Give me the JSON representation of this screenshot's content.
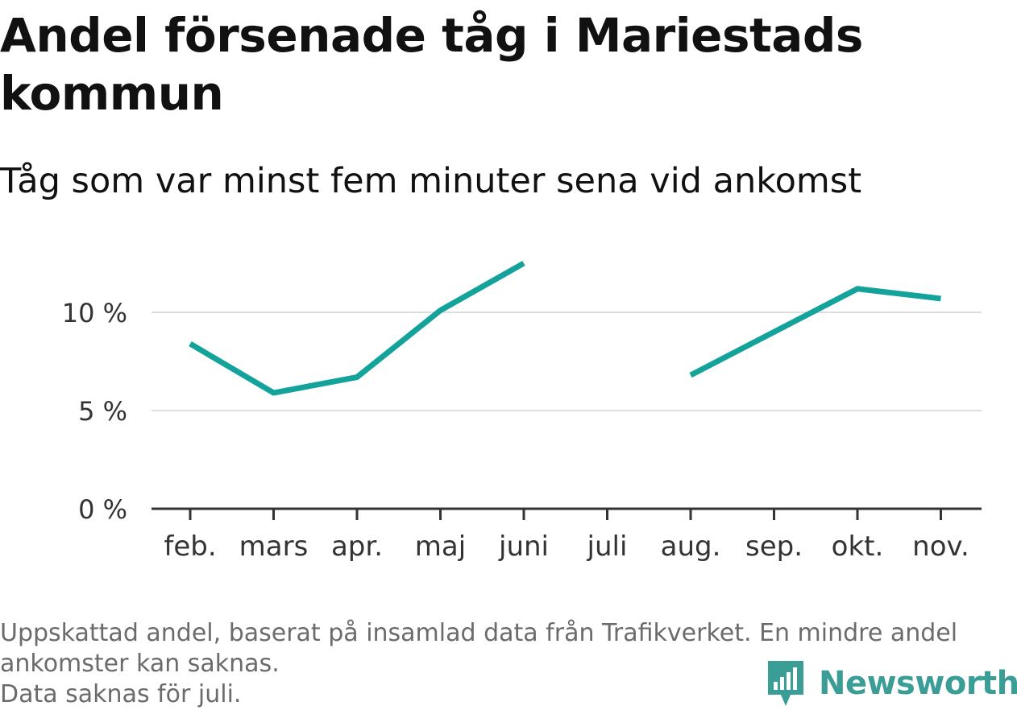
{
  "title": "Andel försenade tåg i Mariestads kommun",
  "subtitle": "Tåg som var minst fem minuter sena vid ankomst",
  "notes": [
    "Uppskattad andel, baserat på insamlad data från Trafikverket. En mindre andel",
    "ankomster kan saknas.",
    "Data saknas för juli."
  ],
  "brand": {
    "name": "Newsworthy",
    "icon": "newsworthy-logo-icon",
    "color": "#3a9d96"
  },
  "chart_data": {
    "type": "line",
    "categories": [
      "feb.",
      "mars",
      "apr.",
      "maj",
      "juni",
      "juli",
      "aug.",
      "sep.",
      "okt.",
      "nov."
    ],
    "series": [
      {
        "values": [
          8.4,
          5.9,
          6.7,
          10.1,
          12.5,
          null,
          6.8,
          9.0,
          11.2,
          10.7
        ],
        "color": "#13a39a"
      }
    ],
    "yticks": [
      0,
      5,
      10
    ],
    "ytick_labels": [
      "0 %",
      "5 %",
      "10 %"
    ],
    "ylim": [
      0,
      14
    ],
    "grid": true,
    "axis_color": "#333333",
    "grid_color": "#dddddd"
  }
}
